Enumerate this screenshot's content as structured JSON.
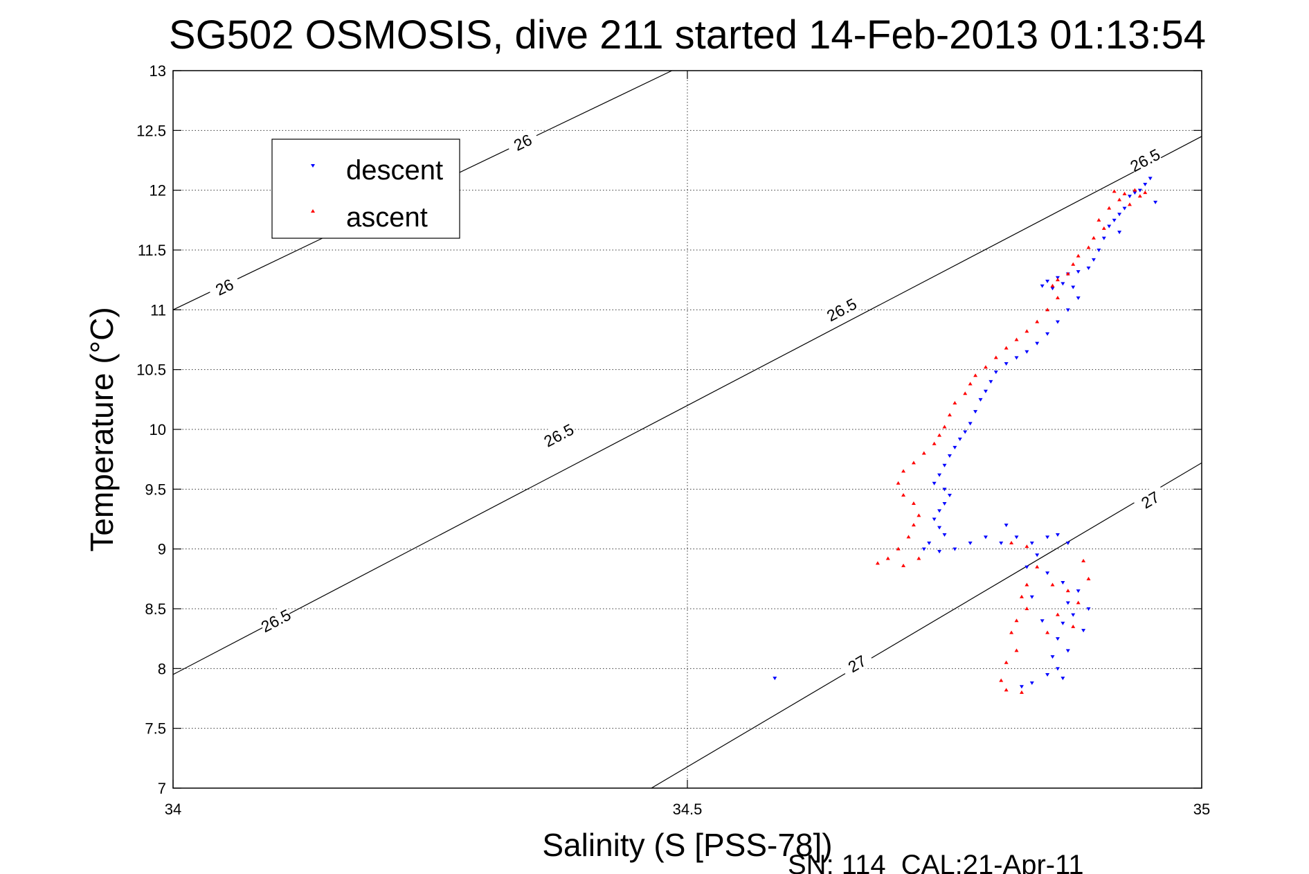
{
  "chart_data": {
    "type": "scatter",
    "title": "SG502 OSMOSIS, dive 211 started 14-Feb-2013 01:13:54",
    "xlabel": "Salinity (S [PSS-78])",
    "ylabel": "Temperature (°C)",
    "xlim": [
      34,
      35
    ],
    "ylim": [
      7,
      13
    ],
    "x_ticks": [
      "34",
      "34.5",
      "35"
    ],
    "y_ticks": [
      "7",
      "7.5",
      "8",
      "8.5",
      "9",
      "9.5",
      "10",
      "10.5",
      "11",
      "11.5",
      "12",
      "12.5",
      "13"
    ],
    "grid": true,
    "legend_position": "top-left",
    "footer": "SN: 114  CAL:21-Apr-11",
    "density_contours": [
      {
        "level": "26",
        "points": [
          [
            34.0,
            11.0
          ],
          [
            34.485,
            13.0
          ]
        ],
        "labels": [
          [
            34.05,
            11.19
          ],
          [
            34.34,
            12.4
          ]
        ]
      },
      {
        "level": "26.5",
        "points": [
          [
            34.0,
            7.95
          ],
          [
            35.0,
            12.45
          ]
        ],
        "labels": [
          [
            34.1,
            8.4
          ],
          [
            34.375,
            9.95
          ],
          [
            34.65,
            11.0
          ],
          [
            34.945,
            12.25
          ]
        ]
      },
      {
        "level": "27",
        "points": [
          [
            34.465,
            7.0
          ],
          [
            35.0,
            9.72
          ]
        ],
        "labels": [
          [
            34.665,
            8.04
          ],
          [
            34.95,
            9.41
          ]
        ]
      }
    ],
    "series": [
      {
        "name": "descent",
        "color": "#0000ff",
        "marker": "triangle-down",
        "points": [
          [
            34.585,
            7.92
          ],
          [
            34.95,
            12.1
          ],
          [
            34.945,
            12.05
          ],
          [
            34.94,
            12.0
          ],
          [
            34.935,
            11.98
          ],
          [
            34.93,
            11.95
          ],
          [
            34.955,
            11.9
          ],
          [
            34.925,
            11.85
          ],
          [
            34.92,
            11.8
          ],
          [
            34.915,
            11.75
          ],
          [
            34.91,
            11.7
          ],
          [
            34.92,
            11.65
          ],
          [
            34.905,
            11.6
          ],
          [
            34.9,
            11.5
          ],
          [
            34.895,
            11.42
          ],
          [
            34.89,
            11.35
          ],
          [
            34.88,
            11.32
          ],
          [
            34.87,
            11.3
          ],
          [
            34.86,
            11.27
          ],
          [
            34.85,
            11.24
          ],
          [
            34.845,
            11.2
          ],
          [
            34.855,
            11.18
          ],
          [
            34.865,
            11.22
          ],
          [
            34.875,
            11.19
          ],
          [
            34.88,
            11.1
          ],
          [
            34.87,
            11.0
          ],
          [
            34.86,
            10.9
          ],
          [
            34.85,
            10.8
          ],
          [
            34.84,
            10.72
          ],
          [
            34.83,
            10.65
          ],
          [
            34.82,
            10.6
          ],
          [
            34.81,
            10.55
          ],
          [
            34.8,
            10.48
          ],
          [
            34.795,
            10.4
          ],
          [
            34.79,
            10.32
          ],
          [
            34.785,
            10.25
          ],
          [
            34.78,
            10.15
          ],
          [
            34.775,
            10.05
          ],
          [
            34.77,
            9.98
          ],
          [
            34.765,
            9.92
          ],
          [
            34.76,
            9.85
          ],
          [
            34.755,
            9.78
          ],
          [
            34.75,
            9.7
          ],
          [
            34.745,
            9.62
          ],
          [
            34.74,
            9.55
          ],
          [
            34.75,
            9.5
          ],
          [
            34.755,
            9.45
          ],
          [
            34.75,
            9.38
          ],
          [
            34.745,
            9.32
          ],
          [
            34.74,
            9.25
          ],
          [
            34.745,
            9.18
          ],
          [
            34.75,
            9.12
          ],
          [
            34.735,
            9.05
          ],
          [
            34.73,
            9.0
          ],
          [
            34.745,
            8.98
          ],
          [
            34.76,
            9.0
          ],
          [
            34.775,
            9.05
          ],
          [
            34.79,
            9.1
          ],
          [
            34.805,
            9.05
          ],
          [
            34.82,
            9.1
          ],
          [
            34.81,
            9.2
          ],
          [
            34.835,
            9.05
          ],
          [
            34.85,
            9.1
          ],
          [
            34.86,
            9.12
          ],
          [
            34.87,
            9.05
          ],
          [
            34.84,
            8.95
          ],
          [
            34.83,
            8.85
          ],
          [
            34.85,
            8.8
          ],
          [
            34.865,
            8.72
          ],
          [
            34.88,
            8.65
          ],
          [
            34.87,
            8.55
          ],
          [
            34.89,
            8.5
          ],
          [
            34.875,
            8.45
          ],
          [
            34.865,
            8.38
          ],
          [
            34.885,
            8.32
          ],
          [
            34.86,
            8.25
          ],
          [
            34.87,
            8.15
          ],
          [
            34.855,
            8.1
          ],
          [
            34.86,
            8.0
          ],
          [
            34.85,
            7.95
          ],
          [
            34.835,
            7.88
          ],
          [
            34.825,
            7.85
          ],
          [
            34.865,
            7.92
          ],
          [
            34.845,
            8.4
          ],
          [
            34.835,
            8.6
          ]
        ]
      },
      {
        "name": "ascent",
        "color": "#ff0000",
        "marker": "triangle-up",
        "points": [
          [
            34.945,
            11.98
          ],
          [
            34.935,
            12.0
          ],
          [
            34.925,
            11.97
          ],
          [
            34.915,
            11.99
          ],
          [
            34.92,
            11.92
          ],
          [
            34.93,
            11.88
          ],
          [
            34.94,
            11.95
          ],
          [
            34.91,
            11.85
          ],
          [
            34.9,
            11.75
          ],
          [
            34.905,
            11.68
          ],
          [
            34.895,
            11.6
          ],
          [
            34.89,
            11.52
          ],
          [
            34.88,
            11.45
          ],
          [
            34.875,
            11.38
          ],
          [
            34.87,
            11.3
          ],
          [
            34.86,
            11.25
          ],
          [
            34.855,
            11.2
          ],
          [
            34.86,
            11.1
          ],
          [
            34.85,
            11.0
          ],
          [
            34.84,
            10.9
          ],
          [
            34.83,
            10.82
          ],
          [
            34.82,
            10.75
          ],
          [
            34.81,
            10.68
          ],
          [
            34.8,
            10.6
          ],
          [
            34.79,
            10.52
          ],
          [
            34.78,
            10.45
          ],
          [
            34.775,
            10.38
          ],
          [
            34.77,
            10.3
          ],
          [
            34.76,
            10.22
          ],
          [
            34.755,
            10.12
          ],
          [
            34.75,
            10.02
          ],
          [
            34.745,
            9.95
          ],
          [
            34.74,
            9.88
          ],
          [
            34.73,
            9.8
          ],
          [
            34.72,
            9.72
          ],
          [
            34.71,
            9.65
          ],
          [
            34.705,
            9.55
          ],
          [
            34.71,
            9.45
          ],
          [
            34.72,
            9.38
          ],
          [
            34.725,
            9.28
          ],
          [
            34.72,
            9.2
          ],
          [
            34.715,
            9.1
          ],
          [
            34.705,
            9.0
          ],
          [
            34.695,
            8.92
          ],
          [
            34.685,
            8.88
          ],
          [
            34.71,
            8.86
          ],
          [
            34.725,
            8.92
          ],
          [
            34.815,
            9.05
          ],
          [
            34.83,
            9.02
          ],
          [
            34.84,
            8.85
          ],
          [
            34.83,
            8.7
          ],
          [
            34.825,
            8.6
          ],
          [
            34.83,
            8.5
          ],
          [
            34.82,
            8.4
          ],
          [
            34.815,
            8.3
          ],
          [
            34.82,
            8.15
          ],
          [
            34.81,
            8.05
          ],
          [
            34.805,
            7.9
          ],
          [
            34.81,
            7.82
          ],
          [
            34.825,
            7.8
          ],
          [
            34.885,
            8.9
          ],
          [
            34.89,
            8.75
          ],
          [
            34.87,
            8.65
          ],
          [
            34.88,
            8.55
          ],
          [
            34.86,
            8.45
          ],
          [
            34.875,
            8.35
          ],
          [
            34.85,
            8.3
          ],
          [
            34.855,
            8.7
          ]
        ]
      }
    ]
  }
}
